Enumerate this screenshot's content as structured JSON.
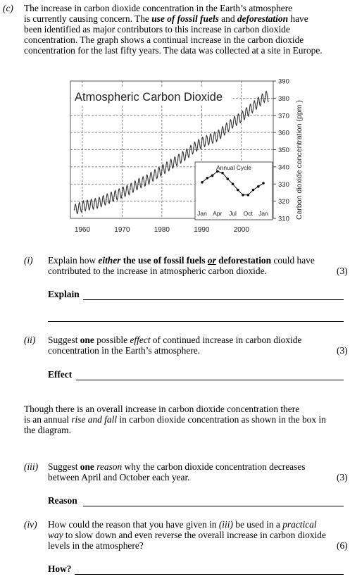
{
  "part_c": {
    "label": "(c)",
    "intro_lines": [
      "The increase in carbon dioxide concentration in the Earth’s atmosphere",
      "is currently causing concern.  The ",
      "been identified as major contributors to this increase in carbon dioxide",
      "concentration. The graph shows a continual increase in the carbon dioxide",
      "concentration for the last fifty years.  The data was collected at a site in Europe."
    ],
    "intro_line2_fossil": "use of fossil fuels",
    "intro_line2_and": " and ",
    "intro_line2_defor": "deforestation",
    "intro_line2_end": " have"
  },
  "chart_data": [
    {
      "type": "line",
      "title": "Atmospheric Carbon Dioxide",
      "ylabel": "Carbon dioxide concentration (ppm )",
      "x_ticks": [
        "1960",
        "1970",
        "1980",
        "1990",
        "2000"
      ],
      "y_ticks": [
        "310",
        "320",
        "330",
        "340",
        "350",
        "360",
        "370",
        "380",
        "390"
      ],
      "xlim": [
        1957,
        2008
      ],
      "ylim": [
        310,
        390
      ],
      "grid": true,
      "series": [
        {
          "x": [
            1958,
            1960,
            1962,
            1964,
            1966,
            1968,
            1970,
            1972,
            1974,
            1976,
            1978,
            1980,
            1982,
            1984,
            1986,
            1988,
            1990,
            1992,
            1994,
            1996,
            1998,
            2000,
            2002,
            2004,
            2006
          ],
          "values": [
            315,
            317,
            318,
            319,
            321,
            323,
            325,
            327,
            330,
            332,
            335,
            338,
            341,
            344,
            347,
            351,
            354,
            356,
            358,
            362,
            366,
            369,
            373,
            377,
            381
          ]
        }
      ]
    },
    {
      "type": "line",
      "title": "Annual Cycle",
      "categories": [
        "Jan",
        "Apr",
        "Jul",
        "Oct",
        "Jan"
      ],
      "series": [
        {
          "x": [
            0,
            1,
            2,
            3,
            4,
            5,
            6,
            7,
            8,
            9,
            10,
            11,
            12
          ],
          "values": [
            0.3,
            0.55,
            0.7,
            0.95,
            0.85,
            0.5,
            0.2,
            -0.15,
            -0.45,
            -0.45,
            -0.15,
            0.05,
            0.25
          ]
        }
      ]
    }
  ],
  "q1": {
    "num": "(i)",
    "line1_pre": "Explain how ",
    "line1_either": "either",
    "line1_mid": " the use of fossil fuels ",
    "line1_or": "or",
    "line1_end": " deforestation",
    "line1_tail": " could have",
    "line2": "contributed to the increase in atmospheric carbon dioxide.",
    "marks": "(3)",
    "answer_label": "Explain"
  },
  "q2": {
    "num": "(ii)",
    "line1_pre": "Suggest ",
    "line1_one": "one",
    "line1_mid": " possible ",
    "line1_effect": "effect",
    "line1_end": " of continued increase in carbon dioxide",
    "line2": "concentration in the Earth’s atmosphere.",
    "marks": "(3)",
    "answer_label": "Effect"
  },
  "para": {
    "line1": "Though there is an overall increase in carbon dioxide concentration there",
    "line2_pre": "is an annual ",
    "line2_em": "rise and fall",
    "line2_end": " in carbon dioxide concentration as shown in the box in",
    "line3": "the diagram."
  },
  "q3": {
    "num": "(iii)",
    "line1_pre": "Suggest ",
    "line1_one": "one",
    "line1_sp": " ",
    "line1_reason": "reason",
    "line1_end": " why the carbon dioxide concentration decreases",
    "line2": "between April and October each year.",
    "marks": "(3)",
    "answer_label": "Reason"
  },
  "q4": {
    "num": "(iv)",
    "line1_pre": "How could the reason that you have given in ",
    "line1_ref": "(iii)",
    "line1_mid": " be used in a ",
    "line1_practical": "practical",
    "line2_way": "way",
    "line2_end": " to slow down and even reverse the overall increase in carbon dioxide",
    "line3": "levels in the atmosphere?",
    "marks": "(6)",
    "answer_label": "How?"
  }
}
